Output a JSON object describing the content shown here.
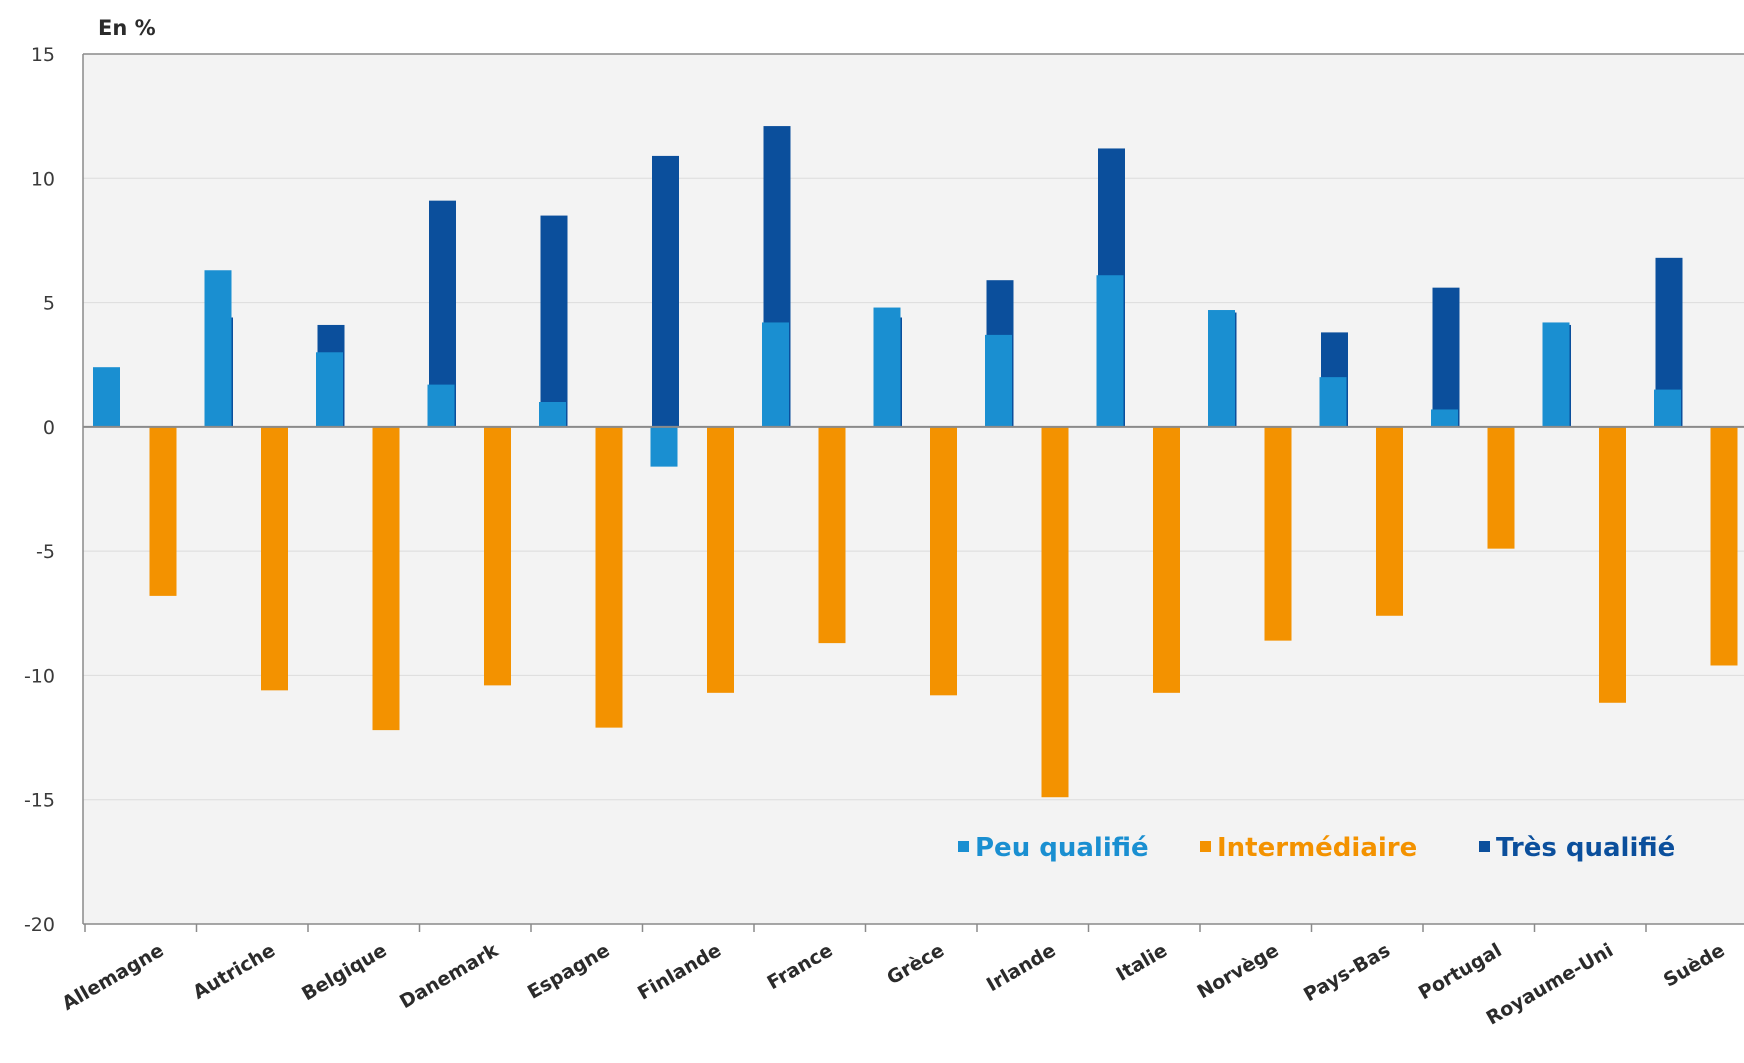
{
  "chart_data": {
    "type": "bar",
    "unit_label": "En %",
    "categories": [
      "Allemagne",
      "Autriche",
      "Belgique",
      "Danemark",
      "Espagne",
      "Finlande",
      "France",
      "Grèce",
      "Irlande",
      "Italie",
      "Norvège",
      "Pays-Bas",
      "Portugal",
      "Royaume-Uni",
      "Suède"
    ],
    "series": [
      {
        "name": "Peu qualifié",
        "color": "#1a8fd1",
        "values": [
          2.4,
          6.3,
          3.0,
          1.7,
          1.0,
          -1.6,
          4.2,
          4.8,
          3.7,
          6.1,
          4.7,
          2.0,
          0.7,
          4.2,
          1.5
        ]
      },
      {
        "name": "Intermédiaire",
        "color": "#f39200",
        "values": [
          -6.8,
          -10.6,
          -12.2,
          -10.4,
          -12.1,
          -10.7,
          -8.7,
          -10.8,
          -14.9,
          -10.7,
          -8.6,
          -7.6,
          -4.9,
          -11.1,
          -9.6
        ]
      },
      {
        "name": "Très qualifié",
        "color": "#0b4f9c",
        "values": [
          4.4,
          4.1,
          9.1,
          8.5,
          10.9,
          12.1,
          4.4,
          5.9,
          11.2,
          4.6,
          3.8,
          5.6,
          4.1,
          6.8,
          8.0
        ]
      }
    ],
    "ylim": [
      -20,
      15
    ],
    "yticks": [
      15,
      10,
      5,
      0,
      -5,
      -10,
      -15,
      -20
    ],
    "grid": true,
    "legend_position": "bottom-right"
  }
}
